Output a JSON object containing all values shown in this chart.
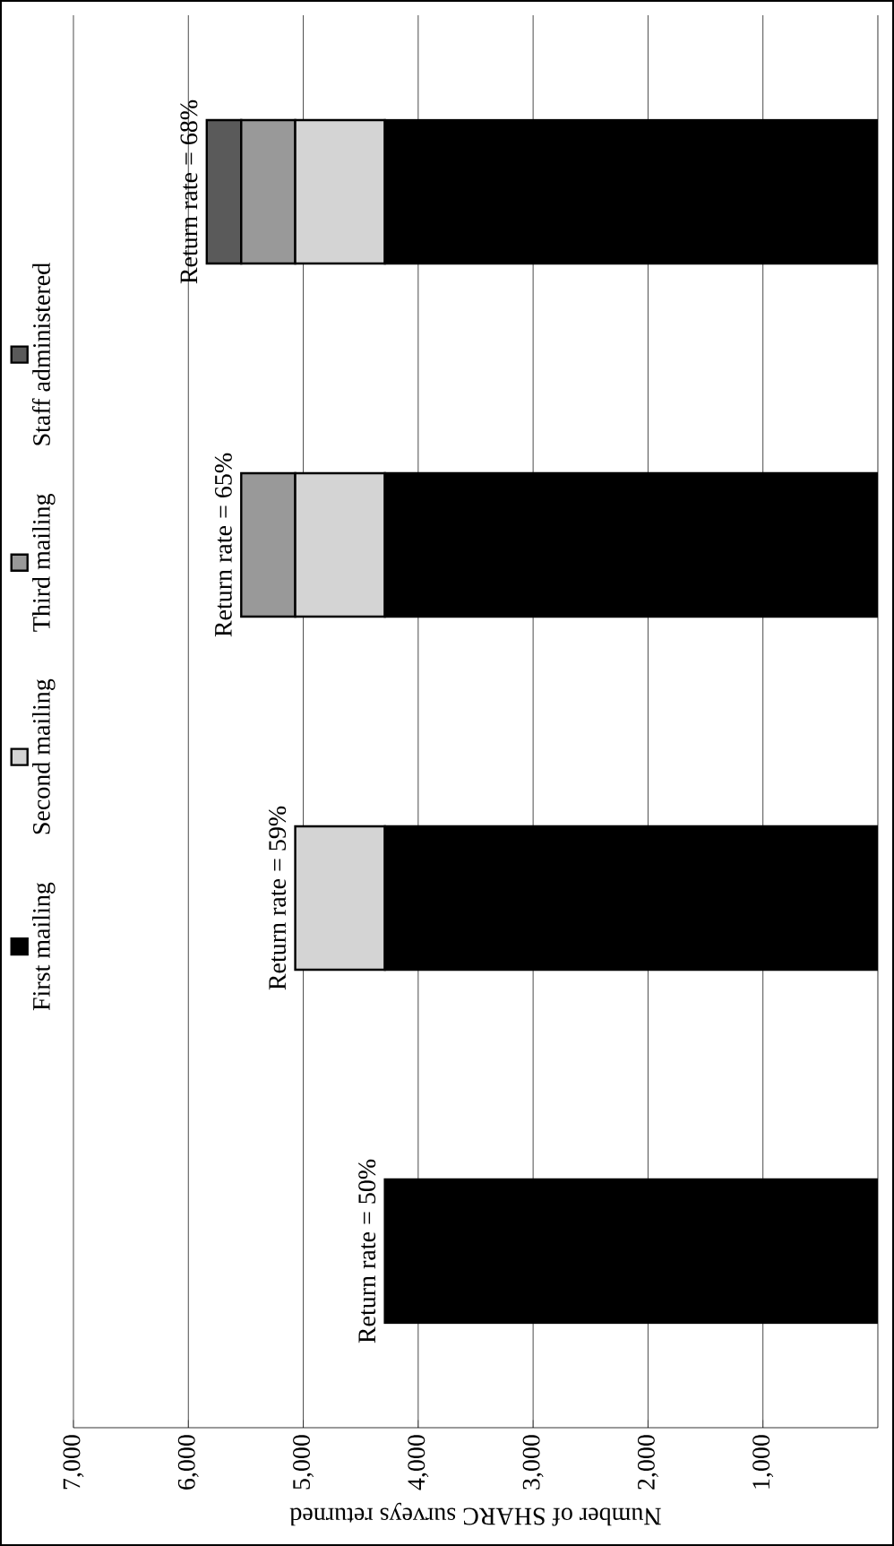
{
  "chart_data": {
    "type": "bar",
    "stacked": true,
    "orientation": "horizontal",
    "categories": [
      null,
      null,
      null,
      null
    ],
    "series": [
      {
        "name": "First mailing",
        "color": "#000000",
        "values": [
          4290,
          4290,
          4290,
          4290
        ]
      },
      {
        "name": "Second mailing",
        "color": "#d4d4d4",
        "values": [
          780,
          780,
          780,
          null
        ]
      },
      {
        "name": "Third mailing",
        "color": "#999999",
        "values": [
          470,
          470,
          null,
          null
        ]
      },
      {
        "name": "Staff administered",
        "color": "#5a5a5a",
        "values": [
          300,
          null,
          null,
          null
        ]
      }
    ],
    "xlabel": "Number of SHARC surveys returned",
    "xlim": [
      7000,
      0
    ],
    "xticks": [
      {
        "value": 1000,
        "label": "1,000"
      },
      {
        "value": 2000,
        "label": "2,000"
      },
      {
        "value": 3000,
        "label": "3,000"
      },
      {
        "value": 4000,
        "label": "4,000"
      },
      {
        "value": 5000,
        "label": "5,000"
      },
      {
        "value": 6000,
        "label": "6,000"
      },
      {
        "value": 7000,
        "label": "7,000"
      }
    ],
    "grid": "x",
    "legend": "left",
    "annotations": [
      {
        "text": "Return rate = 68%",
        "x": 5840
      },
      {
        "text": "Return rate = 65%",
        "x": 5540
      },
      {
        "text": "Return rate = 59%",
        "x": 5070
      },
      {
        "text": "Return rate = 50%",
        "x": 4290
      }
    ]
  }
}
